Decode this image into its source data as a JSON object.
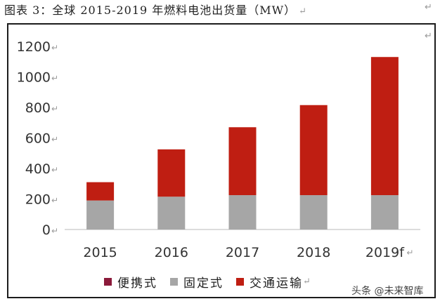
{
  "title": "图表 3：全球 2015-2019 年燃料电池出货量（MW）",
  "paragraph_mark": "↵",
  "chart_data": {
    "type": "bar",
    "stacked": true,
    "categories": [
      "2015",
      "2016",
      "2017",
      "2018",
      "2019f"
    ],
    "series": [
      {
        "name": "便携式",
        "color": "#8b1a3a",
        "values": [
          0,
          0,
          0,
          0,
          0
        ]
      },
      {
        "name": "固定式",
        "color": "#a6a6a6",
        "values": [
          190,
          215,
          225,
          225,
          225
        ]
      },
      {
        "name": "交通运输",
        "color": "#bf1e12",
        "values": [
          120,
          310,
          445,
          590,
          905
        ]
      }
    ],
    "yticks": [
      "0",
      "200",
      "400",
      "600",
      "800",
      "1000",
      "1200"
    ],
    "ylim": [
      0,
      1200
    ],
    "grid": false,
    "legend": "bottom"
  },
  "watermark": "头条 @未来智库"
}
